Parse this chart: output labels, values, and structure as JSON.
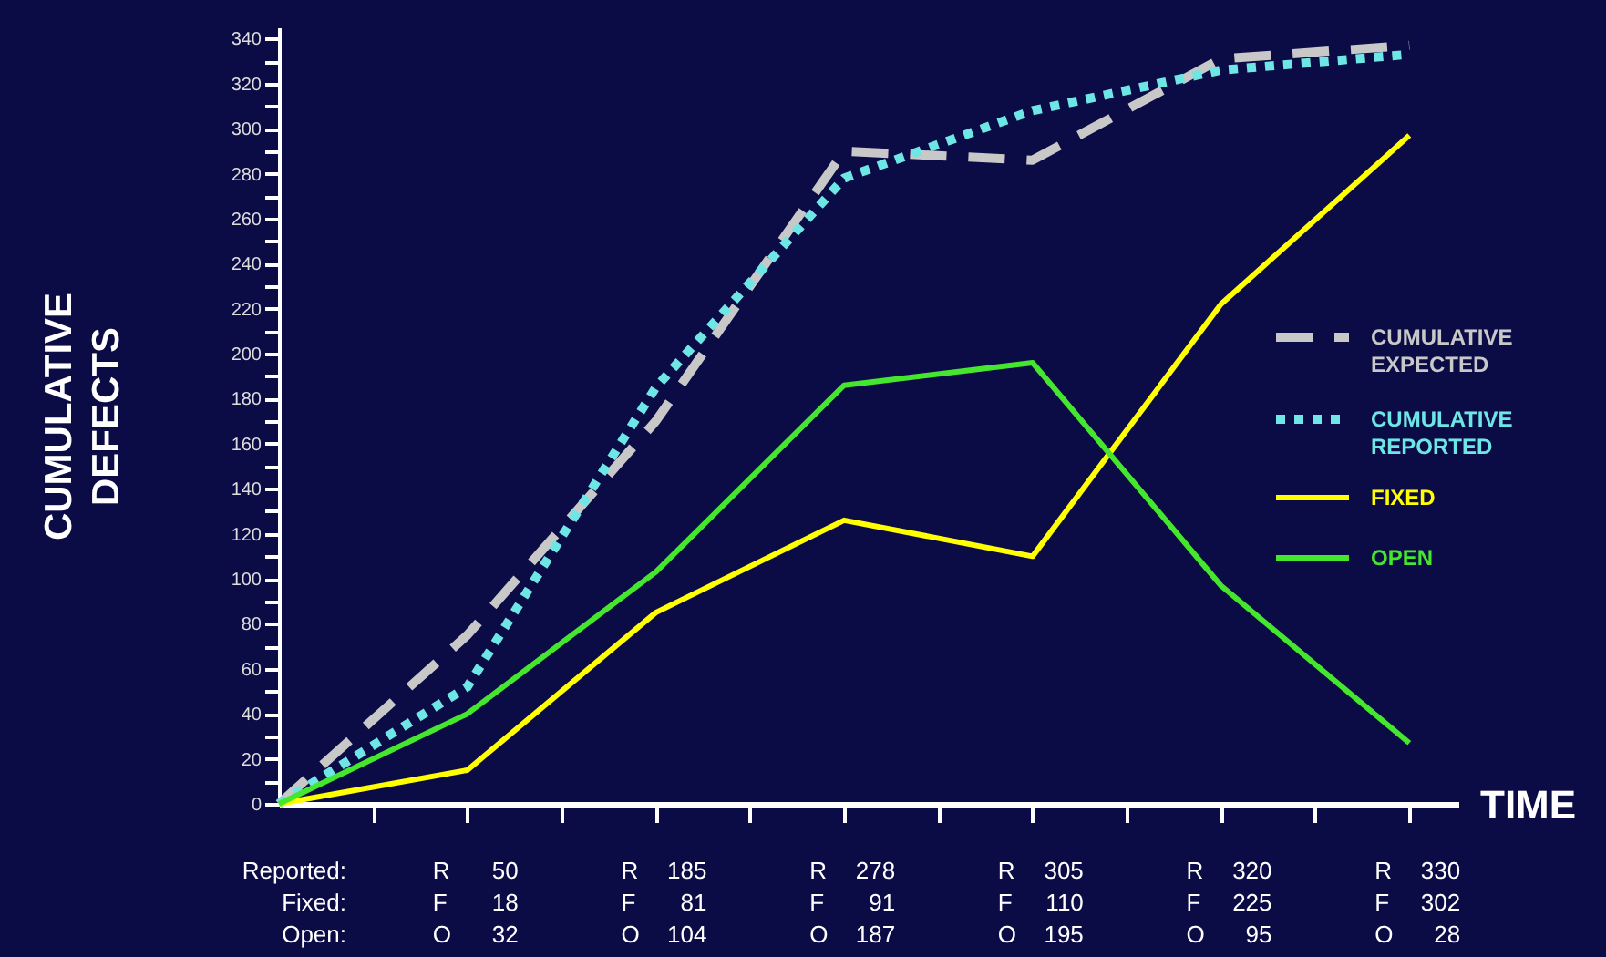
{
  "chart_data": {
    "type": "line",
    "ylabel": "CUMULATIVE DEFECTS",
    "xlabel": "TIME",
    "categories": [
      null,
      null,
      null,
      null,
      null,
      null,
      null
    ],
    "ylim": [
      0,
      345
    ],
    "yticks": [
      0,
      {
        "value": 10,
        "label": null
      },
      20,
      {
        "value": 30,
        "label": null
      },
      40,
      {
        "value": 50,
        "label": null
      },
      60,
      {
        "value": 70,
        "label": null
      },
      80,
      {
        "value": 90,
        "label": null
      },
      100,
      {
        "value": 110,
        "label": null
      },
      120,
      {
        "value": 130,
        "label": null
      },
      140,
      {
        "value": 150,
        "label": null
      },
      160,
      {
        "value": 170,
        "label": null
      },
      180,
      {
        "value": 190,
        "label": null
      },
      200,
      {
        "value": 210,
        "label": null
      },
      220,
      {
        "value": 230,
        "label": null
      },
      240,
      {
        "value": 250,
        "label": null
      },
      260,
      {
        "value": 270,
        "label": null
      },
      280,
      {
        "value": 290,
        "label": null
      },
      300,
      {
        "value": 310,
        "label": null
      },
      320,
      {
        "value": 330,
        "label": null
      },
      340
    ],
    "tick_labels": "y",
    "grid": false,
    "legend": "right",
    "series": [
      {
        "name": "CUMULATIVE EXPECTED",
        "color": "#c8c8c8",
        "line_style": "dashed",
        "values": [
          0,
          75,
          170,
          290,
          286,
          331,
          337
        ]
      },
      {
        "name": "CUMULATIVE REPORTED",
        "color": "#6ee6e6",
        "line_style": "dotted",
        "values": [
          0,
          52,
          185,
          278,
          308,
          326,
          333
        ],
        "value_labels": [
          null,
          "R 50",
          "R 185",
          "R 278",
          "R 305",
          "R 320",
          "R 330"
        ]
      },
      {
        "name": "FIXED",
        "color": "#ffff00",
        "line_style": "solid",
        "values": [
          0,
          15,
          85,
          126,
          110,
          222,
          297
        ],
        "value_labels": [
          null,
          "F 18",
          "F 81",
          "F 91",
          "F 110",
          "F 225",
          "F 302"
        ]
      },
      {
        "name": "OPEN",
        "color": "#44e62e",
        "line_style": "solid",
        "values": [
          0,
          40,
          103,
          186,
          196,
          97,
          27
        ],
        "value_labels": [
          null,
          "O 32",
          "O 104",
          "O 187",
          "O 195",
          "O 95",
          "O 28"
        ]
      }
    ],
    "annotations": [
      "Reported:",
      "Fixed:",
      "Open:"
    ]
  }
}
